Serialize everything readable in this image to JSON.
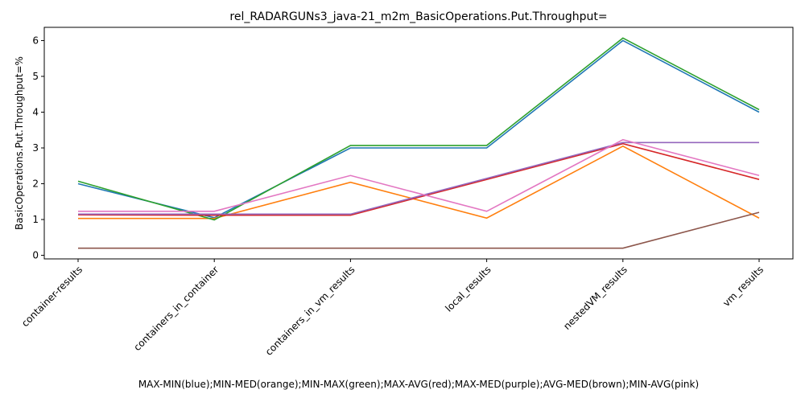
{
  "chart_data": {
    "type": "line",
    "title": "rel_RADARGUNs3_java-21_m2m_BasicOperations.Put.Throughput=",
    "xlabel": "MAX-MIN(blue);MIN-MED(orange);MIN-MAX(green);MAX-AVG(red);MAX-MED(purple);AVG-MED(brown);MIN-AVG(pink)",
    "ylabel": "BasicOperations.Put.Throughput=%",
    "categories": [
      "container-results",
      "containers_in_container",
      "containers_in_vm_results",
      "local_results",
      "nestedVM_results",
      "vm_results"
    ],
    "ylim": [
      -0.1,
      6.37
    ],
    "yticks": [
      0,
      1,
      2,
      3,
      4,
      5,
      6
    ],
    "grid": false,
    "series": [
      {
        "color": "#1f77b4",
        "values": [
          2.0,
          1.05,
          3.0,
          3.0,
          6.0,
          4.0
        ]
      },
      {
        "color": "#ff7f0e",
        "values": [
          1.03,
          1.03,
          2.04,
          1.04,
          3.05,
          1.04
        ]
      },
      {
        "color": "#2ca02c",
        "values": [
          2.07,
          0.99,
          3.07,
          3.07,
          6.07,
          4.07
        ]
      },
      {
        "color": "#d62728",
        "values": [
          1.13,
          1.12,
          1.12,
          2.12,
          3.12,
          2.12
        ]
      },
      {
        "color": "#9467bd",
        "values": [
          1.15,
          1.15,
          1.15,
          2.15,
          3.15,
          3.15
        ]
      },
      {
        "color": "#8c564b",
        "values": [
          0.2,
          0.2,
          0.2,
          0.2,
          0.2,
          1.2
        ]
      },
      {
        "color": "#e377c2",
        "values": [
          1.23,
          1.23,
          2.23,
          1.23,
          3.23,
          2.23
        ]
      }
    ]
  }
}
